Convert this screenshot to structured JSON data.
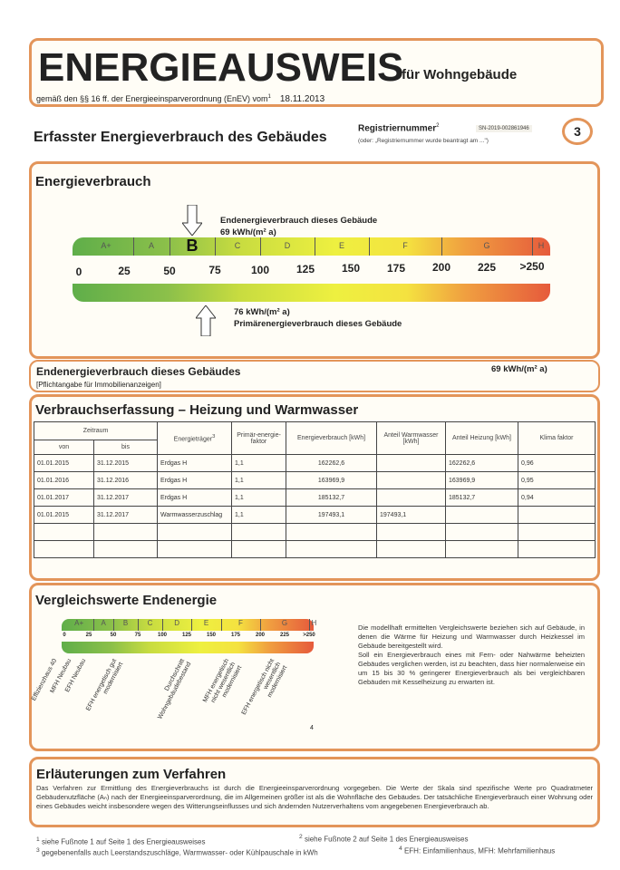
{
  "header": {
    "title": "ENERGIEAUSWEIS",
    "title_suffix": "für Wohngebäude",
    "subtitle": "gemäß den §§ 16 ff. der Energieeinsparverordnung (EnEV) vom",
    "subtitle_sup": "1",
    "date": "18.11.2013"
  },
  "page": {
    "heading": "Erfasster Energieverbrauch des Gebäudes",
    "reg_label": "Registriernummer",
    "reg_sup": "2",
    "reg_value": "SN-2019-002861946",
    "reg_note": "(oder: „Registriernummer wurde beantragt am ...\")",
    "page_number": "3"
  },
  "energy": {
    "title": "Energieverbrauch",
    "end_label": "Endenergieverbrauch dieses Gebäude",
    "end_value": "69 kWh/(m² a)",
    "end_numeric": 69,
    "primary_value": "76 kWh/(m² a)",
    "primary_numeric": 76,
    "primary_label": "Primärenergieverbrauch dieses Gebäude",
    "classes": [
      {
        "name": "A+",
        "from": 0,
        "to": 30
      },
      {
        "name": "A",
        "from": 30,
        "to": 50
      },
      {
        "name": "B",
        "from": 50,
        "to": 75
      },
      {
        "name": "C",
        "from": 75,
        "to": 100
      },
      {
        "name": "D",
        "from": 100,
        "to": 130
      },
      {
        "name": "E",
        "from": 130,
        "to": 160
      },
      {
        "name": "F",
        "from": 160,
        "to": 200
      },
      {
        "name": "G",
        "from": 200,
        "to": 250
      },
      {
        "name": "H",
        "from": 250,
        "to": 260
      }
    ],
    "active_class": "B",
    "ticks": [
      "0",
      "25",
      "50",
      "75",
      "100",
      "125",
      "150",
      "175",
      "200",
      "225",
      ">250"
    ]
  },
  "summary": {
    "label": "Endenergieverbrauch dieses Gebäudes",
    "note": "[Pflichtangabe für Immobilienanzeigen]",
    "value": "69 kWh/(m² a)"
  },
  "consumption": {
    "title": "Verbrauchserfassung – Heizung und Warmwasser",
    "headers": {
      "period": "Zeitraum",
      "from": "von",
      "to": "bis",
      "carrier": "Energieträger",
      "carrier_sup": "3",
      "pef": "Primär-energie-faktor",
      "usage": "Energieverbrauch [kWh]",
      "ww": "Anteil Warmwasser [kWh]",
      "heat": "Anteil Heizung [kWh]",
      "climate": "Klima faktor"
    },
    "rows": [
      [
        "01.01.2015",
        "31.12.2015",
        "Erdgas H",
        "1,1",
        "162262,6",
        "",
        "162262,6",
        "0,96"
      ],
      [
        "01.01.2016",
        "31.12.2016",
        "Erdgas H",
        "1,1",
        "163969,9",
        "",
        "163969,9",
        "0,95"
      ],
      [
        "01.01.2017",
        "31.12.2017",
        "Erdgas H",
        "1,1",
        "185132,7",
        "",
        "185132,7",
        "0,94"
      ],
      [
        "01.01.2015",
        "31.12.2017",
        "Warmwasserzuschlag",
        "1,1",
        "197493,1",
        "197493,1",
        "",
        ""
      ],
      [
        "",
        "",
        "",
        "",
        "",
        "",
        "",
        ""
      ],
      [
        "",
        "",
        "",
        "",
        "",
        "",
        "",
        ""
      ]
    ]
  },
  "comparison": {
    "title": "Vergleichswerte Endenergie",
    "ticks": [
      "0",
      "25",
      "50",
      "75",
      "100",
      "125",
      "150",
      "175",
      "200",
      "225",
      ">250"
    ],
    "classes": [
      "A+",
      "A",
      "B",
      "C",
      "D",
      "E",
      "F",
      "G",
      "H"
    ],
    "refs": [
      "Effizienzhaus 40",
      "MFH Neubau",
      "EFH Neubau",
      "EFH energetisch gut modernisiert",
      "Durchschnitt Wohngebäudebestand",
      "MFH energetisch nicht wesentlich modernisiert",
      "EFH energetisch nicht wesentlich modernisiert"
    ],
    "footnote_mark": "4",
    "text1": "Die modellhaft ermittelten Vergleichswerte beziehen sich auf Gebäude, in denen die Wärme für Heizung und Warmwasser durch Heizkessel im Gebäude bereitgestellt wird.",
    "text2": "Soll ein Energieverbrauch eines mit Fern- oder Nahwärme beheizten Gebäudes verglichen werden, ist zu beachten, dass hier normalerweise ein um 15 bis 30 % geringerer Energieverbrauch als bei vergleichbaren Gebäuden mit Kesselheizung zu erwarten ist."
  },
  "explain": {
    "title": "Erläuterungen zum Verfahren",
    "text": "Das Verfahren zur Ermittlung des Energieverbrauchs ist durch die Energieeinsparverordnung vorgegeben. Die Werte der Skala sind spezifische Werte pro Quadratmeter Gebäudenutzfläche (Aₙ) nach der Energieeinsparverordnung, die im Allgemeinen größer ist als die Wohnfläche des Gebäudes. Der tatsächliche Energieverbrauch einer Wohnung oder eines Gebäudes weicht insbesondere wegen des Witterungseinflusses und sich ändernden Nutzerverhaltens vom angegebenen Energieverbrauch ab."
  },
  "footnotes": [
    "siehe Fußnote 1 auf Seite 1 des Energieausweises",
    "siehe Fußnote 2 auf Seite 1 des Energieausweises",
    "gegebenenfalls auch Leerstandszuschläge, Warmwasser- oder Kühlpauschale in kWh",
    "EFH: Einfamilienhaus, MFH: Mehrfamilienhaus"
  ],
  "colors": {
    "border": "#e3955a",
    "green": "#5fae4a",
    "yellow": "#eef040",
    "red": "#e65a3c"
  }
}
